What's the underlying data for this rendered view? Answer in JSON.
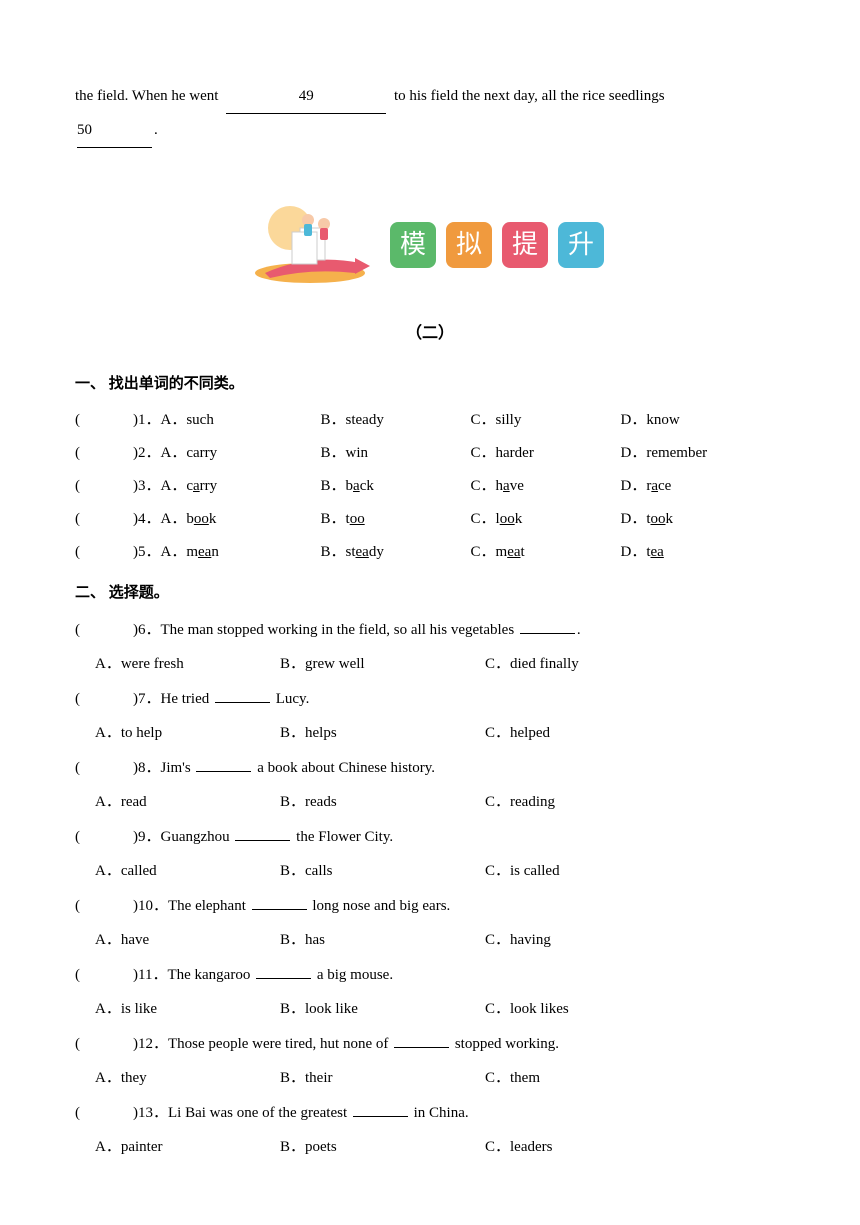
{
  "topParagraph": {
    "part1": "the field. When he went  ",
    "blank49": "49",
    "part2": "  to his field the next day, all the rice seedlings ",
    "blank50": "50",
    "part3": "."
  },
  "banner": {
    "chars": [
      "模",
      "拟",
      "提",
      "升"
    ],
    "colors": [
      "#5bb96a",
      "#f09a3e",
      "#e85a6f",
      "#4db8d8"
    ]
  },
  "subtitle": "（二）",
  "section1": {
    "title": "一、 找出单词的不同类。",
    "questions": [
      {
        "num": "1",
        "a": "such",
        "b": "steady",
        "c": "silly",
        "d": "know",
        "underline": null
      },
      {
        "num": "2",
        "a": "carry",
        "b": "win",
        "c": "harder",
        "d": "remember",
        "underline": null
      },
      {
        "num": "3",
        "a": "carry",
        "b": "back",
        "c": "have",
        "d": "race",
        "underline": "a"
      },
      {
        "num": "4",
        "a": "book",
        "b": "too",
        "c": "look",
        "d": "took",
        "underline": "oo"
      },
      {
        "num": "5",
        "a": "mean",
        "b": "steady",
        "c": "meat",
        "d": "tea",
        "underline": "ea"
      }
    ]
  },
  "section2": {
    "title": "二、 选择题。",
    "questions": [
      {
        "num": "6",
        "stem_before": "The man stopped working in the field, so all his vegetables ",
        "stem_after": ".",
        "a": "were fresh",
        "b": "grew well",
        "c": "died finally"
      },
      {
        "num": "7",
        "stem_before": "He tried ",
        "stem_after": " Lucy.",
        "a": "to help",
        "b": "helps",
        "c": "helped"
      },
      {
        "num": "8",
        "stem_before": "Jim's ",
        "stem_after": " a book about Chinese history.",
        "a": "read",
        "b": "reads",
        "c": "reading"
      },
      {
        "num": "9",
        "stem_before": "Guangzhou ",
        "stem_after": " the Flower City.",
        "a": "called",
        "b": "calls",
        "c": "is called"
      },
      {
        "num": "10",
        "stem_before": "The elephant ",
        "stem_after": " long nose and big ears.",
        "a": "have",
        "b": "has",
        "c": "having"
      },
      {
        "num": "11",
        "stem_before": "The kangaroo ",
        "stem_after": " a big mouse.",
        "a": "is like",
        "b": "look like",
        "c": "look likes"
      },
      {
        "num": "12",
        "stem_before": "Those people were tired, hut none of ",
        "stem_after": " stopped working.",
        "a": "they",
        "b": "their",
        "c": "them"
      },
      {
        "num": "13",
        "stem_before": "Li Bai was one of the greatest ",
        "stem_after": " in China.",
        "a": "painter",
        "b": "poets",
        "c": "leaders"
      }
    ]
  }
}
